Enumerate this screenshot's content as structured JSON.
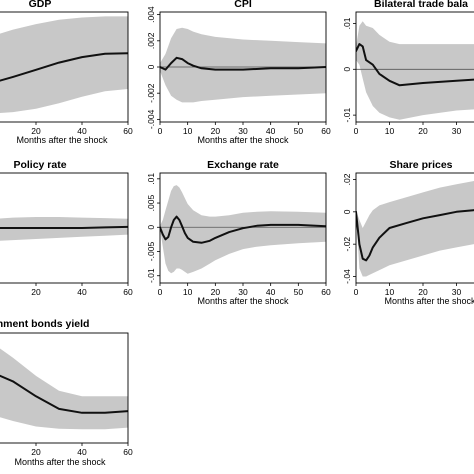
{
  "chart_data": [
    {
      "type": "line",
      "title": "GDP",
      "xlabel": "Months after the shock",
      "ylabel": "",
      "x": [
        0,
        10,
        20,
        30,
        40,
        50,
        60
      ],
      "xticks": [
        0,
        20,
        40,
        60
      ],
      "xlim": [
        0,
        60
      ],
      "ylim": [
        -1,
        1
      ],
      "yticks": [],
      "series": [
        {
          "values": [
            -0.3,
            -0.18,
            -0.05,
            0.08,
            0.18,
            0.24,
            0.25
          ]
        }
      ],
      "band_upper": [
        0.55,
        0.68,
        0.78,
        0.86,
        0.9,
        0.92,
        0.92
      ],
      "band_lower": [
        -0.85,
        -0.82,
        -0.76,
        -0.66,
        -0.54,
        -0.44,
        -0.4
      ],
      "show_zero": false
    },
    {
      "type": "line",
      "title": "CPI",
      "xlabel": "Months after the shock",
      "ylabel": "",
      "x": [
        0,
        2,
        4,
        6,
        8,
        10,
        12,
        15,
        20,
        30,
        40,
        50,
        60
      ],
      "xticks": [
        0,
        10,
        20,
        30,
        40,
        50,
        60
      ],
      "xlim": [
        0,
        60
      ],
      "ylim": [
        -0.0042,
        0.0042
      ],
      "yticks": [
        -0.004,
        -0.002,
        0,
        0.002,
        0.004
      ],
      "ytick_labels": [
        "-.004",
        "-.002",
        "0",
        ".002",
        ".004"
      ],
      "series": [
        {
          "values": [
            0,
            -0.0002,
            0.0003,
            0.0007,
            0.0006,
            0.0003,
            0.0001,
            -0.0001,
            -0.0002,
            -0.0002,
            -0.0001,
            -0.0001,
            0
          ]
        }
      ],
      "band_upper": [
        0.0003,
        0.001,
        0.0022,
        0.0029,
        0.003,
        0.0029,
        0.0027,
        0.0025,
        0.0023,
        0.0021,
        0.002,
        0.0019,
        0.0018
      ],
      "band_lower": [
        -0.0003,
        -0.0014,
        -0.0022,
        -0.0025,
        -0.0027,
        -0.0027,
        -0.0027,
        -0.0026,
        -0.0025,
        -0.0023,
        -0.0022,
        -0.0021,
        -0.002
      ],
      "show_zero": true
    },
    {
      "type": "line",
      "title": "Bilateral trade bala",
      "xlabel": "",
      "ylabel": "",
      "x": [
        0,
        1,
        2,
        3,
        5,
        7,
        10,
        13,
        20,
        30,
        40
      ],
      "xticks": [
        0,
        10,
        20,
        30,
        40
      ],
      "xtick_labels": [
        "0",
        "10",
        "20",
        "30",
        "40("
      ],
      "xlim": [
        0,
        40
      ],
      "ylim": [
        -0.0115,
        0.0125
      ],
      "yticks": [
        -0.01,
        0,
        0.01
      ],
      "ytick_labels": [
        "-.01",
        "0",
        ".01"
      ],
      "series": [
        {
          "values": [
            0.004,
            0.0055,
            0.005,
            0.002,
            0.001,
            -0.001,
            -0.0025,
            -0.0035,
            -0.003,
            -0.0025,
            -0.002
          ]
        }
      ],
      "band_upper": [
        0.005,
        0.0095,
        0.0105,
        0.0095,
        0.009,
        0.0075,
        0.006,
        0.0055,
        0.0055,
        0.0055,
        0.0055
      ],
      "band_lower": [
        0.002,
        0.001,
        -0.002,
        -0.005,
        -0.008,
        -0.0095,
        -0.0105,
        -0.011,
        -0.01,
        -0.009,
        -0.0085
      ],
      "show_zero": true
    },
    {
      "type": "line",
      "title": "Policy rate",
      "xlabel": "",
      "ylabel": "",
      "x": [
        0,
        10,
        20,
        30,
        40,
        50,
        60
      ],
      "xticks": [
        0,
        20,
        40,
        60
      ],
      "xlim": [
        0,
        60
      ],
      "ylim": [
        -1,
        1
      ],
      "yticks": [],
      "series": [
        {
          "values": [
            0,
            0,
            0,
            0,
            0,
            0.01,
            0.02
          ]
        }
      ],
      "band_upper": [
        0.16,
        0.19,
        0.2,
        0.2,
        0.19,
        0.18,
        0.17
      ],
      "band_lower": [
        -0.24,
        -0.22,
        -0.2,
        -0.18,
        -0.16,
        -0.14,
        -0.12
      ],
      "show_zero": false
    },
    {
      "type": "line",
      "title": "Exchange rate",
      "xlabel": "Months after the shock",
      "ylabel": "",
      "x": [
        0,
        1,
        2,
        3,
        4,
        5,
        6,
        7,
        8,
        9,
        10,
        12,
        15,
        18,
        20,
        25,
        30,
        35,
        40,
        50,
        60
      ],
      "xticks": [
        0,
        10,
        20,
        30,
        40,
        50,
        60
      ],
      "xlim": [
        0,
        60
      ],
      "ylim": [
        -0.0115,
        0.0112
      ],
      "yticks": [
        -0.01,
        -0.005,
        0,
        0.005,
        0.01
      ],
      "ytick_labels": [
        "-.01",
        "-.005",
        "0",
        ".005",
        ".01"
      ],
      "series": [
        {
          "values": [
            0,
            -0.0015,
            -0.0025,
            -0.002,
            0,
            0.0015,
            0.0022,
            0.0015,
            0.0002,
            -0.0012,
            -0.0022,
            -0.003,
            -0.0032,
            -0.0028,
            -0.0022,
            -0.001,
            -0.0002,
            0.0003,
            0.0005,
            0.0005,
            0.0002
          ]
        }
      ],
      "band_upper": [
        0.0003,
        0.0015,
        0.0035,
        0.0055,
        0.0075,
        0.0085,
        0.0087,
        0.0082,
        0.0072,
        0.006,
        0.0048,
        0.0035,
        0.0025,
        0.0022,
        0.0022,
        0.0025,
        0.003,
        0.0032,
        0.0033,
        0.0032,
        0.003
      ],
      "band_lower": [
        -0.0003,
        -0.004,
        -0.0075,
        -0.009,
        -0.0095,
        -0.0092,
        -0.0085,
        -0.0085,
        -0.0088,
        -0.0092,
        -0.0096,
        -0.0092,
        -0.0085,
        -0.0075,
        -0.0068,
        -0.0055,
        -0.0045,
        -0.004,
        -0.0037,
        -0.0033,
        -0.003
      ],
      "show_zero": true
    },
    {
      "type": "line",
      "title": "Share prices",
      "xlabel": "Months after the shock",
      "ylabel": "",
      "x": [
        0,
        1,
        2,
        3,
        4,
        5,
        7,
        10,
        15,
        20,
        25,
        30,
        35,
        40
      ],
      "xticks": [
        0,
        10,
        20,
        30,
        40
      ],
      "xtick_labels": [
        "0",
        "10",
        "20",
        "30",
        "40"
      ],
      "xlim": [
        0,
        40
      ],
      "ylim": [
        -0.044,
        0.024
      ],
      "yticks": [
        -0.04,
        -0.02,
        0,
        0.02
      ],
      "ytick_labels": [
        "-.04",
        "-.02",
        "0",
        ".02"
      ],
      "series": [
        {
          "values": [
            0,
            -0.02,
            -0.029,
            -0.03,
            -0.027,
            -0.022,
            -0.016,
            -0.01,
            -0.007,
            -0.004,
            -0.002,
            0,
            0.001,
            0.002
          ]
        }
      ],
      "band_upper": [
        0.001,
        -0.005,
        -0.01,
        -0.006,
        -0.002,
        0.001,
        0.004,
        0.006,
        0.009,
        0.012,
        0.015,
        0.017,
        0.019,
        0.02
      ],
      "band_lower": [
        -0.001,
        -0.035,
        -0.04,
        -0.04,
        -0.039,
        -0.038,
        -0.036,
        -0.033,
        -0.03,
        -0.027,
        -0.024,
        -0.022,
        -0.02,
        -0.019
      ],
      "show_zero": false
    },
    {
      "type": "line",
      "title": "overnment bonds yield",
      "xlabel": "Months after the shock",
      "ylabel": "",
      "x": [
        0,
        10,
        20,
        30,
        40,
        50,
        60
      ],
      "xticks": [
        0,
        20,
        40,
        60
      ],
      "xlim": [
        0,
        60
      ],
      "ylim": [
        -1,
        1
      ],
      "yticks": [],
      "series": [
        {
          "values": [
            0.3,
            0.12,
            -0.15,
            -0.38,
            -0.45,
            -0.45,
            -0.42
          ]
        }
      ],
      "band_upper": [
        0.85,
        0.55,
        0.22,
        -0.05,
        -0.15,
        -0.15,
        -0.15
      ],
      "band_lower": [
        -0.48,
        -0.6,
        -0.7,
        -0.74,
        -0.75,
        -0.75,
        -0.72
      ],
      "show_zero": false
    }
  ]
}
